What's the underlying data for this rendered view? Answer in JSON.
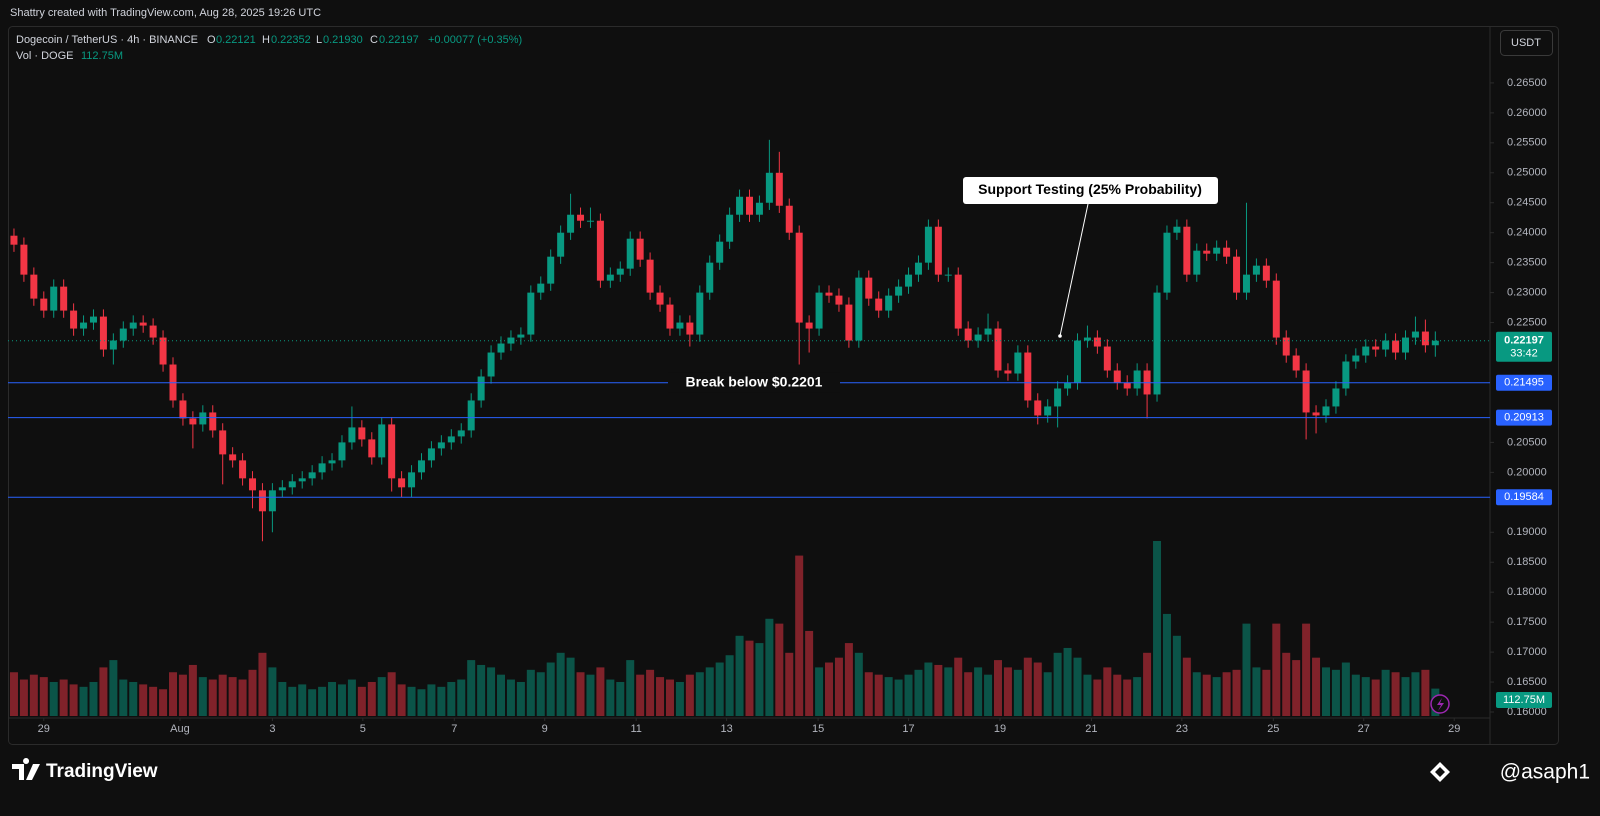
{
  "chart_data": {
    "type": "candlestick",
    "attribution": "Shattry created with TradingView.com, Aug 28, 2025 19:26 UTC",
    "title": "Dogecoin / TetherUS · 4h · BINANCE",
    "ohlc_legend": [
      "O",
      "0.22121",
      "H",
      "0.22352",
      "L",
      "0.21930",
      "C",
      "0.22197",
      "+0.00077 (+0.35%)"
    ],
    "volume_legend": [
      "Vol · DOGE",
      "112.75M"
    ],
    "currency": "USDT",
    "price_label": 0.22197,
    "countdown": "33:42",
    "levels": [
      0.21495,
      0.20913,
      0.19584
    ],
    "volume_axis_label": "112.75M",
    "annotations": [
      "Break below $0.2201",
      "Support Testing (25% Probability)"
    ],
    "brand": "TradingView",
    "watermark": "@asaph1",
    "up_color": "#089981",
    "down_color": "#f23645",
    "level_color": "#2962ff",
    "grid": false,
    "xlim": [
      -0.6,
      148.5
    ],
    "ylim": [
      0.159,
      0.2745
    ],
    "xticks": [
      {
        "value": 3,
        "label": "29"
      },
      {
        "value": 16.7,
        "label": "Aug"
      },
      {
        "value": 26,
        "label": "3"
      },
      {
        "value": 35.1,
        "label": "5"
      },
      {
        "value": 44.3,
        "label": "7"
      },
      {
        "value": 53.4,
        "label": "9"
      },
      {
        "value": 62.6,
        "label": "11"
      },
      {
        "value": 71.7,
        "label": "13"
      },
      {
        "value": 80.9,
        "label": "15"
      },
      {
        "value": 90,
        "label": "17"
      },
      {
        "value": 99.2,
        "label": "19"
      },
      {
        "value": 108.4,
        "label": "21"
      },
      {
        "value": 117.5,
        "label": "23"
      },
      {
        "value": 126.7,
        "label": "25"
      },
      {
        "value": 135.8,
        "label": "27"
      },
      {
        "value": 144.9,
        "label": "29"
      }
    ],
    "yticks": [
      {
        "value": 0.265,
        "label": "0.26500"
      },
      {
        "value": 0.26,
        "label": "0.26000"
      },
      {
        "value": 0.255,
        "label": "0.25500"
      },
      {
        "value": 0.25,
        "label": "0.25000"
      },
      {
        "value": 0.245,
        "label": "0.24500"
      },
      {
        "value": 0.24,
        "label": "0.24000"
      },
      {
        "value": 0.235,
        "label": "0.23500"
      },
      {
        "value": 0.23,
        "label": "0.23000"
      },
      {
        "value": 0.225,
        "label": "0.22500"
      },
      {
        "value": 0.205,
        "label": "0.20500"
      },
      {
        "value": 0.2,
        "label": "0.20000"
      },
      {
        "value": 0.19,
        "label": "0.19000"
      },
      {
        "value": 0.185,
        "label": "0.18500"
      },
      {
        "value": 0.18,
        "label": "0.18000"
      },
      {
        "value": 0.175,
        "label": "0.17500"
      },
      {
        "value": 0.17,
        "label": "0.17000"
      },
      {
        "value": 0.165,
        "label": "0.16500"
      },
      {
        "value": 0.16,
        "label": "0.16000"
      }
    ],
    "open": [
      0.2395,
      0.238,
      0.233,
      0.229,
      0.227,
      0.231,
      0.227,
      0.224,
      0.225,
      0.226,
      0.2205,
      0.222,
      0.224,
      0.225,
      0.2245,
      0.2225,
      0.218,
      0.212,
      0.209,
      0.208,
      0.21,
      0.207,
      0.203,
      0.202,
      0.199,
      0.197,
      0.1935,
      0.197,
      0.1975,
      0.1985,
      0.199,
      0.2,
      0.2015,
      0.202,
      0.205,
      0.2075,
      0.2055,
      0.2025,
      0.208,
      0.199,
      0.1975,
      0.2,
      0.202,
      0.204,
      0.205,
      0.206,
      0.207,
      0.212,
      0.216,
      0.22,
      0.2215,
      0.2225,
      0.223,
      0.23,
      0.2315,
      0.236,
      0.24,
      0.243,
      0.242,
      0.242,
      0.232,
      0.233,
      0.234,
      0.239,
      0.2355,
      0.23,
      0.228,
      0.224,
      0.225,
      0.223,
      0.23,
      0.235,
      0.2385,
      0.243,
      0.246,
      0.243,
      0.245,
      0.25,
      0.2445,
      0.24,
      0.225,
      0.224,
      0.23,
      0.2295,
      0.228,
      0.222,
      0.2325,
      0.229,
      0.227,
      0.2295,
      0.231,
      0.233,
      0.235,
      0.241,
      0.233,
      0.233,
      0.224,
      0.222,
      0.223,
      0.224,
      0.217,
      0.2165,
      0.22,
      0.212,
      0.2095,
      0.211,
      0.214,
      0.215,
      0.222,
      0.2225,
      0.221,
      0.217,
      0.215,
      0.214,
      0.217,
      0.213,
      0.23,
      0.24,
      0.241,
      0.233,
      0.237,
      0.2365,
      0.2375,
      0.236,
      0.23,
      0.233,
      0.2345,
      0.232,
      0.2225,
      0.2195,
      0.217,
      0.21,
      0.2095,
      0.211,
      0.214,
      0.2185,
      0.2195,
      0.221,
      0.2205,
      0.222,
      0.22,
      0.2225,
      0.2235,
      0.22121
    ],
    "high": [
      0.2407,
      0.2392,
      0.2342,
      0.2302,
      0.2322,
      0.2322,
      0.2282,
      0.2262,
      0.2272,
      0.2272,
      0.2232,
      0.2252,
      0.2262,
      0.2262,
      0.2257,
      0.2237,
      0.2192,
      0.2132,
      0.2102,
      0.2112,
      0.2112,
      0.2082,
      0.2042,
      0.2032,
      0.2002,
      0.1982,
      0.1982,
      0.1987,
      0.1997,
      0.2002,
      0.2012,
      0.2027,
      0.2032,
      0.2062,
      0.211,
      0.2087,
      0.2067,
      0.2092,
      0.2092,
      0.2002,
      0.2012,
      0.2032,
      0.2052,
      0.2062,
      0.2072,
      0.2082,
      0.2132,
      0.2172,
      0.2212,
      0.2227,
      0.2237,
      0.2242,
      0.2312,
      0.2327,
      0.2372,
      0.2412,
      0.2465,
      0.2442,
      0.2442,
      0.2432,
      0.2342,
      0.2352,
      0.2402,
      0.2402,
      0.2367,
      0.2312,
      0.2292,
      0.2262,
      0.2262,
      0.2312,
      0.2362,
      0.2397,
      0.2442,
      0.2472,
      0.2472,
      0.2462,
      0.2555,
      0.2535,
      0.2457,
      0.2412,
      0.2262,
      0.2312,
      0.2312,
      0.2307,
      0.2292,
      0.2337,
      0.2337,
      0.2302,
      0.2307,
      0.2322,
      0.2342,
      0.2362,
      0.2422,
      0.2422,
      0.2342,
      0.2342,
      0.2252,
      0.2242,
      0.2265,
      0.2252,
      0.2182,
      0.2212,
      0.2212,
      0.2132,
      0.2122,
      0.2152,
      0.2162,
      0.2232,
      0.2245,
      0.2237,
      0.2222,
      0.2182,
      0.2162,
      0.2182,
      0.2182,
      0.2312,
      0.2412,
      0.2422,
      0.2422,
      0.2382,
      0.2382,
      0.2387,
      0.2387,
      0.2372,
      0.245,
      0.2357,
      0.2357,
      0.2332,
      0.2237,
      0.2207,
      0.2182,
      0.2112,
      0.2122,
      0.2152,
      0.2197,
      0.2207,
      0.2222,
      0.2222,
      0.2232,
      0.2232,
      0.2237,
      0.226,
      0.2255,
      0.22352
    ],
    "low": [
      0.2368,
      0.2318,
      0.2278,
      0.2258,
      0.2258,
      0.2258,
      0.2228,
      0.2228,
      0.2238,
      0.2193,
      0.218,
      0.2208,
      0.2228,
      0.2233,
      0.2213,
      0.2168,
      0.2108,
      0.2078,
      0.204,
      0.2068,
      0.2058,
      0.198,
      0.2008,
      0.1978,
      0.194,
      0.1885,
      0.19,
      0.1958,
      0.1963,
      0.1973,
      0.1978,
      0.1988,
      0.2003,
      0.2008,
      0.2038,
      0.2043,
      0.2013,
      0.2013,
      0.1968,
      0.1958,
      0.1958,
      0.1988,
      0.2008,
      0.2028,
      0.2038,
      0.2048,
      0.2058,
      0.2108,
      0.2148,
      0.2188,
      0.2203,
      0.2213,
      0.2218,
      0.2288,
      0.2303,
      0.2348,
      0.2388,
      0.2408,
      0.2408,
      0.2308,
      0.2308,
      0.2318,
      0.2328,
      0.2343,
      0.2288,
      0.2268,
      0.2228,
      0.2228,
      0.221,
      0.2218,
      0.2288,
      0.2338,
      0.2373,
      0.2418,
      0.2418,
      0.2418,
      0.2438,
      0.2433,
      0.2388,
      0.218,
      0.22,
      0.2228,
      0.2283,
      0.2268,
      0.2208,
      0.2208,
      0.2278,
      0.2258,
      0.2258,
      0.2283,
      0.2298,
      0.2318,
      0.2338,
      0.2318,
      0.2318,
      0.2228,
      0.2208,
      0.2208,
      0.2218,
      0.2158,
      0.2153,
      0.2153,
      0.2108,
      0.208,
      0.2083,
      0.2075,
      0.2128,
      0.2138,
      0.2208,
      0.2198,
      0.2158,
      0.2138,
      0.2128,
      0.2128,
      0.209,
      0.2118,
      0.2288,
      0.2388,
      0.2318,
      0.2318,
      0.2353,
      0.2353,
      0.2348,
      0.2288,
      0.2288,
      0.2318,
      0.2308,
      0.2213,
      0.2183,
      0.2158,
      0.2055,
      0.2065,
      0.2083,
      0.2098,
      0.2128,
      0.2173,
      0.2183,
      0.2193,
      0.2193,
      0.2188,
      0.2188,
      0.2213,
      0.22,
      0.2193
    ],
    "close": [
      0.238,
      0.233,
      0.229,
      0.227,
      0.231,
      0.227,
      0.224,
      0.225,
      0.226,
      0.2205,
      0.222,
      0.224,
      0.225,
      0.2245,
      0.2225,
      0.218,
      0.212,
      0.209,
      0.208,
      0.21,
      0.207,
      0.203,
      0.202,
      0.199,
      0.197,
      0.1935,
      0.197,
      0.1975,
      0.1985,
      0.199,
      0.2,
      0.2015,
      0.202,
      0.205,
      0.2075,
      0.2055,
      0.2025,
      0.208,
      0.199,
      0.1975,
      0.2,
      0.202,
      0.204,
      0.205,
      0.206,
      0.207,
      0.212,
      0.216,
      0.22,
      0.2215,
      0.2225,
      0.223,
      0.23,
      0.2315,
      0.236,
      0.24,
      0.243,
      0.242,
      0.242,
      0.232,
      0.233,
      0.234,
      0.239,
      0.2355,
      0.23,
      0.228,
      0.224,
      0.225,
      0.223,
      0.23,
      0.235,
      0.2385,
      0.243,
      0.246,
      0.243,
      0.245,
      0.25,
      0.2445,
      0.24,
      0.225,
      0.224,
      0.23,
      0.2295,
      0.228,
      0.222,
      0.2325,
      0.229,
      0.227,
      0.2295,
      0.231,
      0.233,
      0.235,
      0.241,
      0.233,
      0.233,
      0.224,
      0.222,
      0.223,
      0.224,
      0.217,
      0.2165,
      0.22,
      0.212,
      0.2095,
      0.211,
      0.214,
      0.215,
      0.222,
      0.2225,
      0.221,
      0.217,
      0.215,
      0.214,
      0.217,
      0.213,
      0.23,
      0.24,
      0.241,
      0.233,
      0.237,
      0.2365,
      0.2375,
      0.236,
      0.23,
      0.233,
      0.2345,
      0.232,
      0.2225,
      0.2195,
      0.217,
      0.21,
      0.2095,
      0.211,
      0.214,
      0.2185,
      0.2195,
      0.221,
      0.2205,
      0.222,
      0.22,
      0.2225,
      0.2235,
      0.22121,
      0.22197
    ],
    "volume": [
      180,
      150,
      170,
      160,
      140,
      150,
      130,
      120,
      140,
      200,
      230,
      150,
      140,
      130,
      120,
      110,
      180,
      170,
      210,
      160,
      150,
      170,
      160,
      150,
      190,
      260,
      200,
      140,
      120,
      130,
      110,
      120,
      140,
      130,
      150,
      120,
      140,
      160,
      180,
      130,
      120,
      110,
      130,
      120,
      140,
      150,
      230,
      210,
      200,
      170,
      150,
      140,
      190,
      180,
      220,
      260,
      240,
      180,
      170,
      200,
      150,
      140,
      230,
      170,
      190,
      160,
      150,
      140,
      170,
      180,
      200,
      220,
      250,
      330,
      310,
      300,
      400,
      380,
      260,
      660,
      350,
      200,
      220,
      240,
      300,
      260,
      180,
      170,
      160,
      150,
      170,
      190,
      220,
      210,
      200,
      240,
      180,
      200,
      170,
      230,
      200,
      190,
      240,
      220,
      180,
      260,
      280,
      240,
      170,
      150,
      200,
      170,
      150,
      160,
      260,
      720,
      420,
      330,
      240,
      180,
      170,
      160,
      180,
      190,
      380,
      200,
      190,
      380,
      260,
      230,
      380,
      240,
      200,
      190,
      220,
      170,
      160,
      150,
      190,
      180,
      160,
      180,
      190,
      112.75
    ]
  }
}
